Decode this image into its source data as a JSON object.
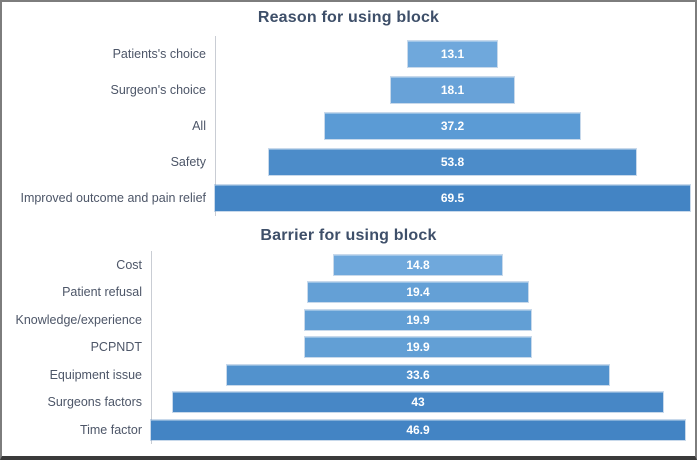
{
  "figure": {
    "background": "#ffffff",
    "border_color": "#7d7d7d",
    "bottom_border_color": "#3a3a3a"
  },
  "styles": {
    "title_color": "#3e4f69",
    "category_label_color": "#4d5668",
    "value_label_color": "#ffffff",
    "axis_line_color": "#c9cdd4"
  },
  "chart_data": [
    {
      "type": "bar",
      "subtype": "funnel-centered-horizontal",
      "title": "Reason for using block",
      "categories": [
        "Patients's choice",
        "Surgeon's choice",
        "All",
        "Safety",
        "Improved outcome and pain relief"
      ],
      "values": [
        13.1,
        18.1,
        37.2,
        53.8,
        69.5
      ],
      "value_labels": [
        "13.1",
        "18.1",
        "37.2",
        "53.8",
        "69.5"
      ],
      "bar_colors": [
        "#6FA8DC",
        "#68A2D8",
        "#5B9BD5",
        "#4C8CC9",
        "#4384C4"
      ],
      "xlim": [
        0,
        69.5
      ],
      "orientation": "horizontal",
      "bars_centered": true,
      "grid": false,
      "legend": "none",
      "xlabel": "",
      "ylabel": ""
    },
    {
      "type": "bar",
      "subtype": "funnel-centered-horizontal",
      "title": "Barrier for using block",
      "categories": [
        "Cost",
        "Patient refusal",
        "Knowledge/experience",
        "PCPNDT",
        "Equipment issue",
        "Surgeons factors",
        "Time factor"
      ],
      "values": [
        14.8,
        19.4,
        19.9,
        19.9,
        33.6,
        43,
        46.9
      ],
      "value_labels": [
        "14.8",
        "19.4",
        "19.9",
        "19.9",
        "33.6",
        "43",
        "46.9"
      ],
      "bar_colors": [
        "#6FA8DC",
        "#64A0D6",
        "#629FD5",
        "#629FD5",
        "#5292CD",
        "#4787C6",
        "#4384C4"
      ],
      "xlim": [
        0,
        46.9
      ],
      "orientation": "horizontal",
      "bars_centered": true,
      "grid": false,
      "legend": "none",
      "xlabel": "",
      "ylabel": ""
    }
  ]
}
